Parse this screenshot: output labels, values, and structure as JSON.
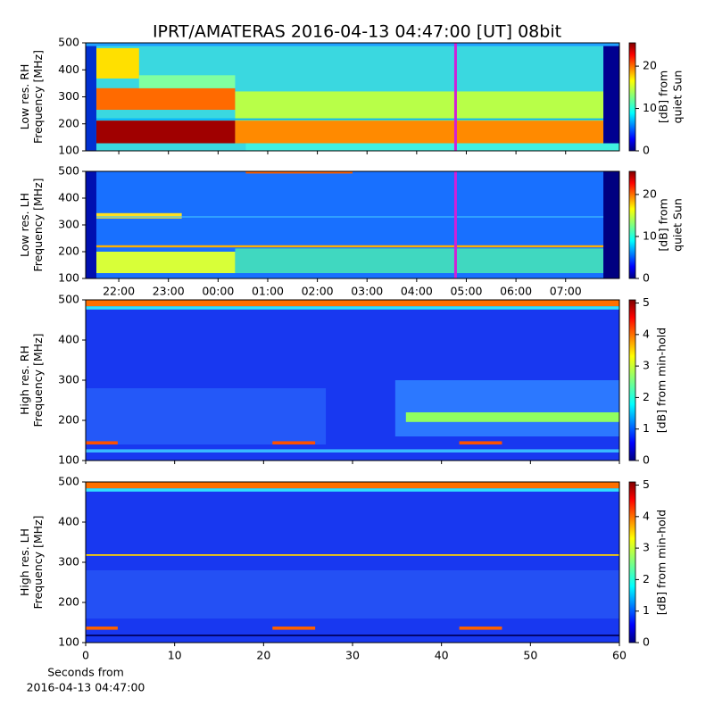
{
  "title": "IPRT/AMATERAS 2016-04-13 04:47:00 [UT]   08bit",
  "chart_data": [
    {
      "type": "heatmap",
      "time_axis": true,
      "ylabel": [
        "Low res. RH",
        "Frequency [MHz]"
      ],
      "xlim": [
        "21:20",
        "08:05"
      ],
      "xticks": [
        "22:00",
        "23:00",
        "00:00",
        "01:00",
        "02:00",
        "03:00",
        "04:00",
        "05:00",
        "06:00",
        "07:00"
      ],
      "show_xtick_labels": false,
      "marker": "04:47",
      "marker_color": "#d020d8",
      "ylim": [
        100,
        500
      ],
      "yticks": [
        100,
        200,
        300,
        400,
        500
      ],
      "colorbar_label": [
        "[dB] from",
        "quiet Sun"
      ],
      "clim": [
        0,
        25.5
      ],
      "cticks": [
        0,
        10,
        20
      ]
    },
    {
      "type": "heatmap",
      "time_axis": true,
      "ylabel": [
        "Low res. LH",
        "Frequency [MHz]"
      ],
      "xlim": [
        "21:20",
        "08:05"
      ],
      "xticks": [
        "22:00",
        "23:00",
        "00:00",
        "01:00",
        "02:00",
        "03:00",
        "04:00",
        "05:00",
        "06:00",
        "07:00"
      ],
      "show_xtick_labels": true,
      "marker": "04:47",
      "marker_color": "#d020d8",
      "ylim": [
        100,
        500
      ],
      "yticks": [
        100,
        200,
        300,
        400,
        500
      ],
      "colorbar_label": [
        "[dB] from",
        "quiet Sun"
      ],
      "clim": [
        0,
        25.5
      ],
      "cticks": [
        0,
        10,
        20
      ]
    },
    {
      "type": "heatmap",
      "time_axis": false,
      "ylabel": [
        "High res. RH",
        "Frequency [MHz]"
      ],
      "xlim": [
        0,
        60
      ],
      "xticks": [
        0,
        10,
        20,
        30,
        40,
        50,
        60
      ],
      "show_xtick_labels": false,
      "ylim": [
        100,
        500
      ],
      "yticks": [
        100,
        200,
        300,
        400,
        500
      ],
      "colorbar_label": [
        "[dB] from min-hold"
      ],
      "clim": [
        0,
        5.1
      ],
      "cticks": [
        0,
        1,
        2,
        3,
        4,
        5
      ]
    },
    {
      "type": "heatmap",
      "time_axis": false,
      "ylabel": [
        "High res. LH",
        "Frequency [MHz]"
      ],
      "xlim": [
        0,
        60
      ],
      "xticks": [
        0,
        10,
        20,
        30,
        40,
        50,
        60
      ],
      "show_xtick_labels": true,
      "xlabel": [
        "Seconds from",
        "2016-04-13 04:47:00"
      ],
      "ylim": [
        100,
        500
      ],
      "yticks": [
        100,
        200,
        300,
        400,
        500
      ],
      "colorbar_label": [
        "[dB] from min-hold"
      ],
      "clim": [
        0,
        5.1
      ],
      "cticks": [
        0,
        1,
        2,
        3,
        4,
        5
      ]
    }
  ]
}
